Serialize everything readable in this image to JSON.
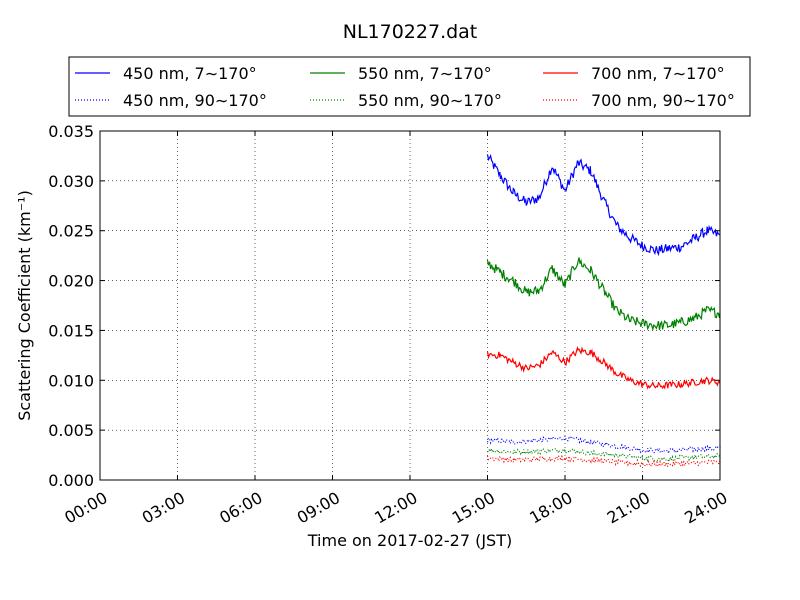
{
  "chart_data": {
    "type": "line",
    "title": "NL170227.dat",
    "xlabel": "Time on 2017-02-27 (JST)",
    "ylabel": "Scattering Coefficient (km⁻¹)",
    "xlim_hours": [
      0,
      24
    ],
    "ylim": [
      0,
      0.035
    ],
    "x_tick_labels": [
      "00:00",
      "03:00",
      "06:00",
      "09:00",
      "12:00",
      "15:00",
      "18:00",
      "21:00",
      "24:00"
    ],
    "y_tick_labels": [
      "0.000",
      "0.005",
      "0.010",
      "0.015",
      "0.020",
      "0.025",
      "0.030",
      "0.035"
    ],
    "grid": true,
    "legend_position": "top",
    "series": [
      {
        "name": "450 nm, 7∼170°",
        "color": "#0000ff",
        "style": "solid",
        "x": [
          15,
          15.5,
          16,
          16.5,
          17,
          17.5,
          18,
          18.5,
          19,
          19.5,
          20,
          20.5,
          21,
          21.5,
          22,
          22.5,
          23,
          23.5,
          24
        ],
        "values": [
          0.0325,
          0.0305,
          0.0288,
          0.0278,
          0.0283,
          0.0315,
          0.029,
          0.0318,
          0.031,
          0.028,
          0.0255,
          0.0243,
          0.0235,
          0.023,
          0.0232,
          0.0234,
          0.0242,
          0.025,
          0.0245
        ]
      },
      {
        "name": "450 nm, 90∼170°",
        "color": "#0000ff",
        "style": "dotted",
        "x": [
          15,
          16,
          17,
          18,
          19,
          20,
          21,
          22,
          23,
          24
        ],
        "values": [
          0.004,
          0.0038,
          0.004,
          0.0042,
          0.0038,
          0.0034,
          0.003,
          0.0029,
          0.0031,
          0.0032
        ]
      },
      {
        "name": "550 nm, 7∼170°",
        "color": "#008000",
        "style": "solid",
        "x": [
          15,
          15.5,
          16,
          16.5,
          17,
          17.5,
          18,
          18.5,
          19,
          19.5,
          20,
          20.5,
          21,
          21.5,
          22,
          22.5,
          23,
          23.5,
          24
        ],
        "values": [
          0.0218,
          0.0208,
          0.02,
          0.0188,
          0.019,
          0.0212,
          0.0195,
          0.022,
          0.021,
          0.019,
          0.017,
          0.016,
          0.0157,
          0.0155,
          0.0155,
          0.0158,
          0.0162,
          0.017,
          0.0167
        ]
      },
      {
        "name": "550 nm, 90∼170°",
        "color": "#008000",
        "style": "dotted",
        "x": [
          15,
          16,
          17,
          18,
          19,
          20,
          21,
          22,
          23,
          24
        ],
        "values": [
          0.003,
          0.0028,
          0.0029,
          0.003,
          0.0027,
          0.0025,
          0.0022,
          0.0021,
          0.0023,
          0.0024
        ]
      },
      {
        "name": "700 nm, 7∼170°",
        "color": "#ff0000",
        "style": "solid",
        "x": [
          15,
          15.5,
          16,
          16.5,
          17,
          17.5,
          18,
          18.5,
          19,
          19.5,
          20,
          20.5,
          21,
          21.5,
          22,
          22.5,
          23,
          23.5,
          24
        ],
        "values": [
          0.0126,
          0.0125,
          0.0118,
          0.0112,
          0.0115,
          0.0128,
          0.0118,
          0.013,
          0.0128,
          0.0118,
          0.0107,
          0.01,
          0.0096,
          0.0094,
          0.0095,
          0.0096,
          0.0098,
          0.01,
          0.0098
        ]
      },
      {
        "name": "700 nm, 90∼170°",
        "color": "#ff0000",
        "style": "dotted",
        "x": [
          15,
          16,
          17,
          18,
          19,
          20,
          21,
          22,
          23,
          24
        ],
        "values": [
          0.0022,
          0.002,
          0.0021,
          0.0022,
          0.002,
          0.0018,
          0.0016,
          0.0016,
          0.0017,
          0.0018
        ]
      }
    ]
  }
}
